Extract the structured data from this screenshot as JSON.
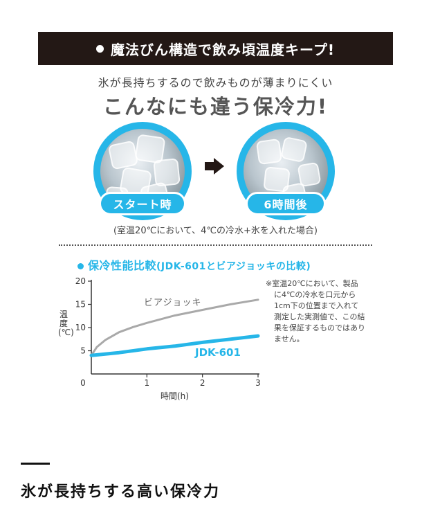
{
  "banner": {
    "text": "魔法びん構造で飲み頃温度キープ!"
  },
  "subtitle": "氷が長持ちするので飲みものが薄まりにくい",
  "headline": "こんなにも違う保冷力!",
  "comparison": {
    "start_label": "スタート時",
    "after_label": "6時間後",
    "condition": "(室温20℃において、4℃の冷水+氷を入れた場合)"
  },
  "chart_section": {
    "title": "保冷性能比較",
    "title_sub": "(JDK-601とビアジョッキの比較)",
    "note_lines": [
      "※室温20℃において、製品",
      "に4℃の冷水を口元から",
      "1cm下の位置まで入れて",
      "測定した実測値で、この結",
      "果を保証するものではあり",
      "ません。"
    ]
  },
  "chart_data": {
    "type": "line",
    "title": "保冷性能比較(JDK-601とビアジョッキの比較)",
    "xlabel": "時間(h)",
    "ylabel": "温度(℃)",
    "xlim": [
      0,
      3
    ],
    "ylim": [
      0,
      20
    ],
    "x_ticks": [
      "0",
      "1",
      "2",
      "3"
    ],
    "y_ticks": [
      "5",
      "10",
      "15",
      "20"
    ],
    "grid": false,
    "series": [
      {
        "name": "ビアジョッキ",
        "color": "#a9a9a9",
        "x": [
          0,
          0.1,
          0.25,
          0.5,
          0.75,
          1,
          1.5,
          2,
          2.5,
          3
        ],
        "y": [
          4,
          5.8,
          7.3,
          9.0,
          10.1,
          11.0,
          12.6,
          13.8,
          15.0,
          16.0
        ]
      },
      {
        "name": "JDK-601",
        "color": "#26b6e8",
        "x": [
          0,
          0.5,
          1,
          1.5,
          2,
          2.5,
          3
        ],
        "y": [
          4,
          4.6,
          5.4,
          6.0,
          6.8,
          7.5,
          8.2
        ]
      }
    ]
  },
  "bottom": {
    "heading": "氷が長持ちする高い保冷力"
  }
}
